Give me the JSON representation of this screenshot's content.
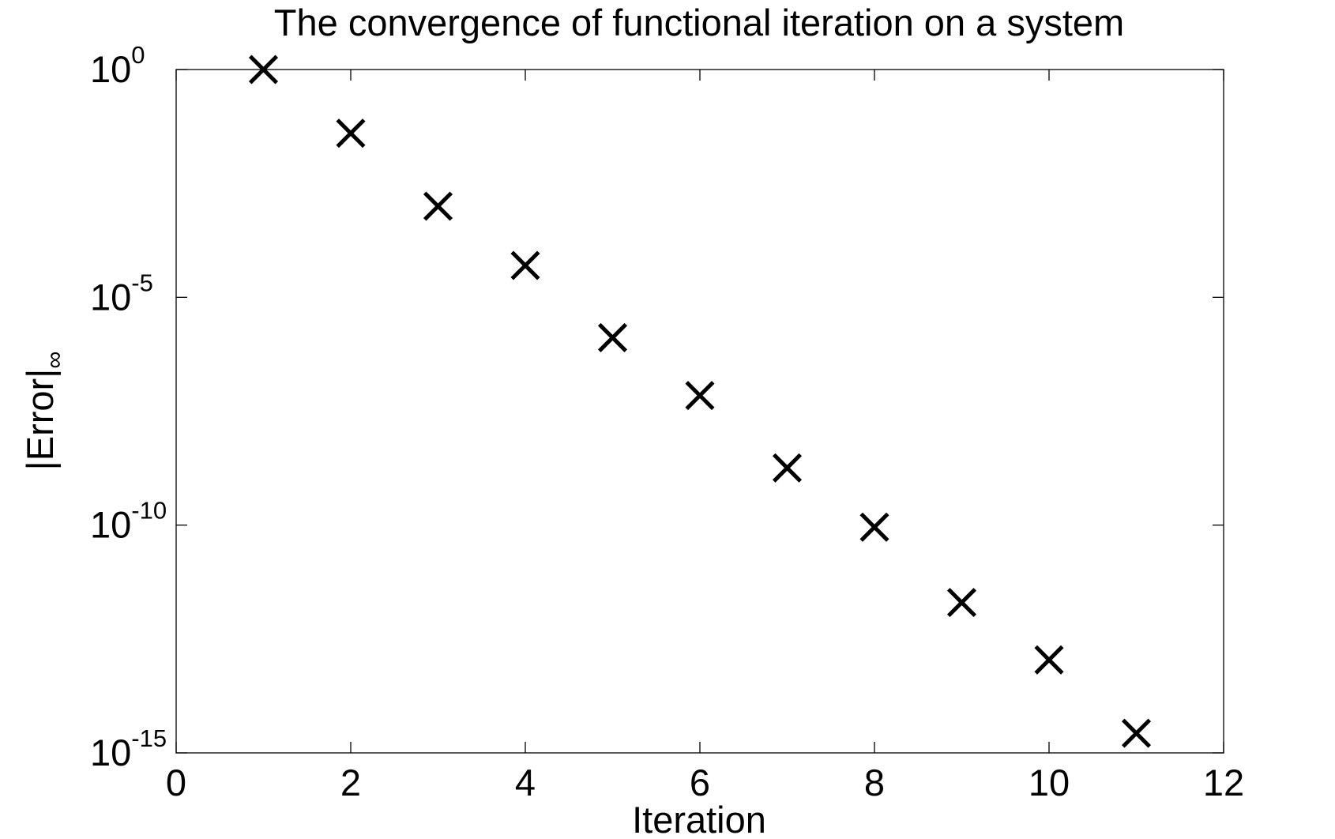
{
  "chart_data": {
    "type": "scatter",
    "title": "The convergence of functional iteration on a system",
    "xlabel": "Iteration",
    "ylabel": {
      "main": "|Error|",
      "subscript": "∞"
    },
    "yscale": "log",
    "xlim": [
      0,
      12
    ],
    "ylim": [
      1e-15,
      1
    ],
    "xticks": [
      0,
      2,
      4,
      6,
      8,
      10,
      12
    ],
    "xtick_labels": [
      "0",
      "2",
      "4",
      "6",
      "8",
      "10",
      "12"
    ],
    "yticks": [
      1,
      1e-05,
      1e-10,
      1e-15
    ],
    "ytick_labels": [
      {
        "base": "10",
        "exp": "0"
      },
      {
        "base": "10",
        "exp": "-5"
      },
      {
        "base": "10",
        "exp": "-10"
      },
      {
        "base": "10",
        "exp": "-15"
      }
    ],
    "grid": false,
    "marker": "x",
    "marker_color": "#000000",
    "x": [
      1,
      2,
      3,
      4,
      5,
      6,
      7,
      8,
      9,
      10,
      11
    ],
    "y": [
      1.0,
      0.04,
      0.001,
      5e-05,
      1.3e-06,
      7e-08,
      1.8e-09,
      9e-11,
      2e-12,
      1.1e-13,
      2.7e-15
    ]
  }
}
